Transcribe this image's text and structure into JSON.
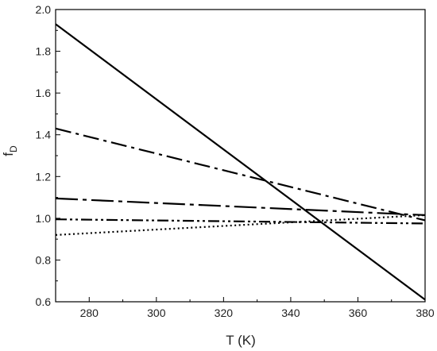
{
  "chart_data": {
    "type": "line",
    "xlabel": "T (K)",
    "ylabel": {
      "main": "f",
      "sub": "D"
    },
    "xlim": [
      270,
      380
    ],
    "ylim": [
      0.6,
      2.0
    ],
    "xticks": [
      "280",
      "300",
      "320",
      "340",
      "360",
      "380"
    ],
    "yticks": [
      "0.6",
      "0.8",
      "1.0",
      "1.2",
      "1.4",
      "1.6",
      "1.8",
      "2.0"
    ],
    "grid": false,
    "legend": "none",
    "series": [
      {
        "style": "solid",
        "x": [
          270,
          380
        ],
        "y": [
          1.93,
          0.61
        ]
      },
      {
        "style": "dash-dot",
        "x": [
          270,
          380
        ],
        "y": [
          1.43,
          0.99
        ]
      },
      {
        "style": "long-dash-dot",
        "x": [
          270,
          380
        ],
        "y": [
          1.095,
          1.015
        ]
      },
      {
        "style": "dash-dot-dot",
        "x": [
          270,
          380
        ],
        "y": [
          0.995,
          0.975
        ]
      },
      {
        "style": "dotted",
        "x": [
          270,
          380
        ],
        "y": [
          0.92,
          1.015
        ]
      }
    ]
  }
}
